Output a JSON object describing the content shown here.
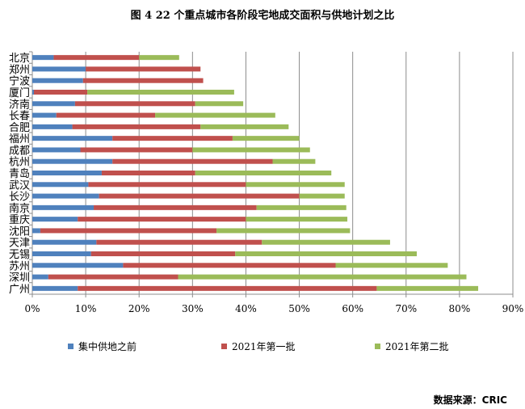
{
  "chart_data": {
    "type": "bar",
    "orientation": "horizontal",
    "stacked": true,
    "title": "图 4   22 个重点城市各阶段宅地成交面积与供地计划之比",
    "categories": [
      "北京",
      "郑州",
      "宁波",
      "厦门",
      "济南",
      "长春",
      "合肥",
      "福州",
      "成都",
      "杭州",
      "青岛",
      "武汉",
      "长沙",
      "南京",
      "重庆",
      "沈阳",
      "天津",
      "无锡",
      "苏州",
      "深圳",
      "广州"
    ],
    "series": [
      {
        "name": "集中供地之前",
        "color": "#4f81bd",
        "values": [
          4.0,
          10.0,
          9.5,
          0.3,
          8.0,
          4.5,
          7.5,
          15.0,
          9.0,
          15.0,
          13.0,
          10.5,
          12.5,
          11.5,
          8.5,
          1.5,
          12.0,
          11.0,
          17.0,
          3.0,
          8.5
        ]
      },
      {
        "name": "2021年第一批",
        "color": "#c0504d",
        "values": [
          16.0,
          21.5,
          22.5,
          10.0,
          22.5,
          18.5,
          24.0,
          22.5,
          21.0,
          30.0,
          17.5,
          29.5,
          37.5,
          30.5,
          31.5,
          33.0,
          31.0,
          27.0,
          39.8,
          24.3,
          56.0
        ]
      },
      {
        "name": "2021年第二批",
        "color": "#9bbb59",
        "values": [
          7.5,
          0,
          0,
          27.5,
          9.0,
          22.5,
          16.5,
          12.5,
          22.0,
          8.0,
          25.5,
          18.5,
          8.5,
          16.8,
          19.0,
          25.0,
          24.0,
          34.0,
          21.0,
          54.0,
          19.0
        ]
      }
    ],
    "xlim": [
      0,
      90
    ],
    "xticks": [
      "0%",
      "10%",
      "20%",
      "30%",
      "40%",
      "50%",
      "60%",
      "70%",
      "80%",
      "90%"
    ],
    "grid": "vertical",
    "legend_position": "bottom"
  },
  "source_note": "数据来源：CRIC"
}
